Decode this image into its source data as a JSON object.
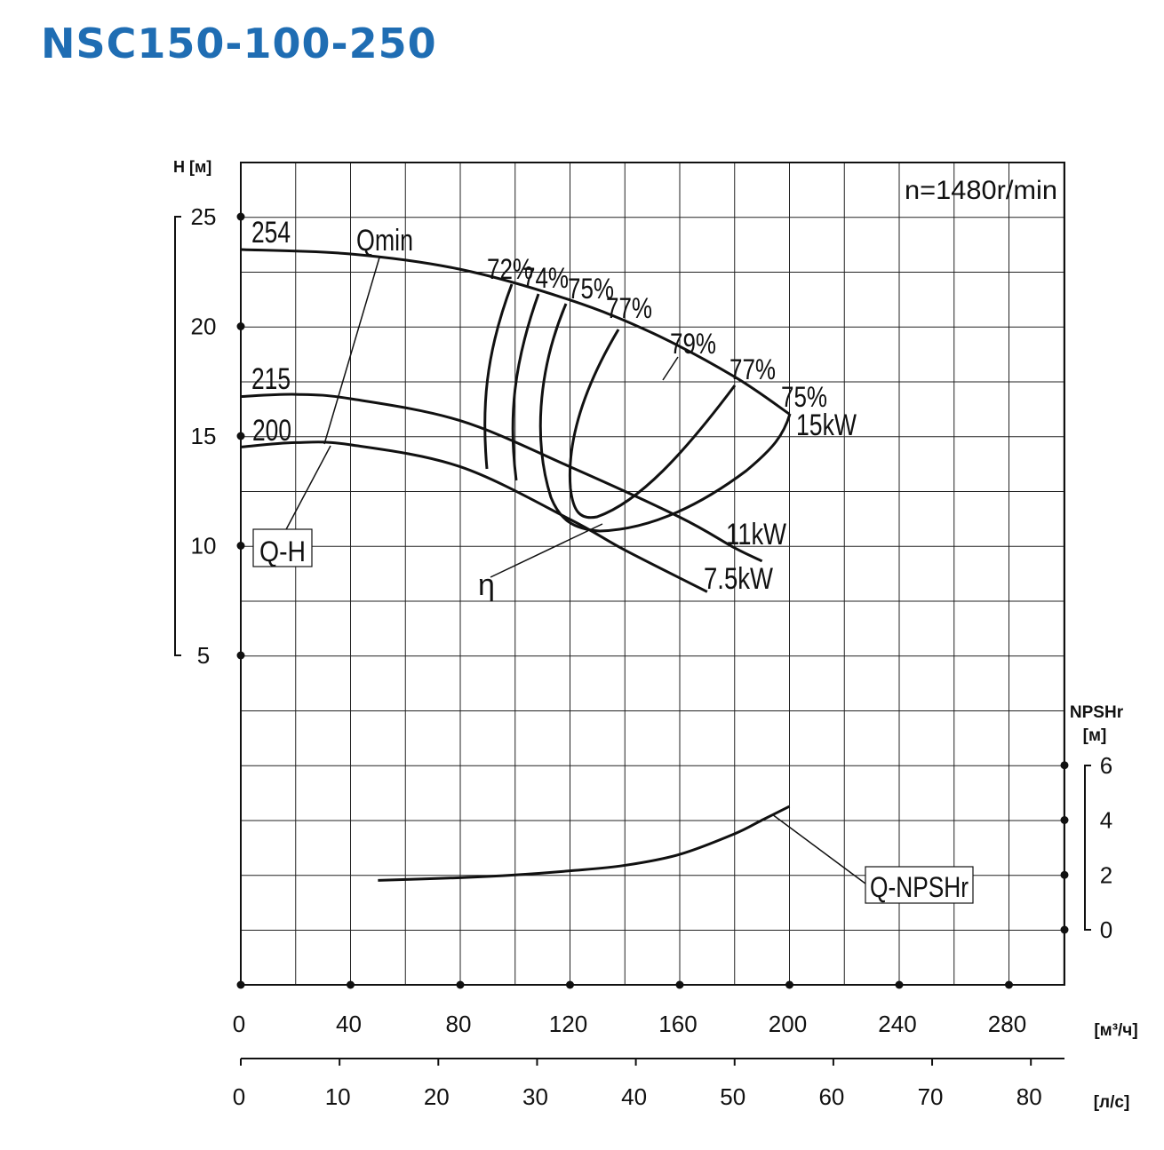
{
  "title": "NSC150-100-250",
  "colors": {
    "title": "#1f6db3",
    "grid": "#222222",
    "curve": "#111111"
  },
  "chart_data": {
    "type": "line",
    "speed_label": "n=1480r/min",
    "y_axis": {
      "label": "H [м]",
      "ticks": [
        25,
        20,
        15,
        10,
        5
      ],
      "range": [
        0,
        28
      ]
    },
    "y2_axis": {
      "label_line1": "NPSHr",
      "label_line2": "[м]",
      "ticks": [
        6,
        4,
        2,
        0
      ],
      "range": [
        0,
        6
      ]
    },
    "x_axis": {
      "unit": "[м³/ч]",
      "ticks": [
        0,
        40,
        80,
        120,
        160,
        200,
        240,
        280
      ],
      "range": [
        0,
        300
      ]
    },
    "x2_axis": {
      "unit": "[л/с]",
      "ticks": [
        0,
        10,
        20,
        30,
        40,
        50,
        60,
        70,
        80
      ]
    },
    "impeller_labels": [
      "254",
      "215",
      "200"
    ],
    "series": [
      {
        "name": "254",
        "kind": "Q-H",
        "x": [
          0,
          40,
          80,
          120,
          150,
          180,
          200
        ],
        "y": [
          23.5,
          23.3,
          22.6,
          21.2,
          19.7,
          17.7,
          16.0
        ]
      },
      {
        "name": "215",
        "kind": "Q-H",
        "x": [
          0,
          20,
          40,
          80,
          120,
          160,
          180,
          190
        ],
        "y": [
          16.8,
          16.9,
          16.7,
          15.7,
          13.6,
          11.3,
          9.9,
          9.3
        ]
      },
      {
        "name": "200",
        "kind": "Q-H",
        "x": [
          0,
          20,
          40,
          80,
          120,
          140,
          170
        ],
        "y": [
          14.5,
          14.7,
          14.6,
          13.6,
          11.2,
          9.8,
          7.9
        ]
      },
      {
        "name": "Q-NPSHr",
        "kind": "NPSHr",
        "x": [
          50,
          80,
          100,
          120,
          140,
          160,
          180,
          190,
          200
        ],
        "y": [
          1.8,
          1.9,
          2.0,
          2.15,
          2.35,
          2.75,
          3.5,
          4.0,
          4.5
        ]
      }
    ],
    "efficiency_labels": [
      "72%",
      "74%",
      "75%",
      "77%",
      "79%",
      "77%",
      "75%"
    ],
    "power_labels": [
      "15kW",
      "11kW",
      "7.5kW"
    ],
    "callouts": {
      "qmin": "Qmin",
      "qh": "Q-H",
      "eta": "η",
      "npshr": "Q-NPSHr"
    }
  }
}
